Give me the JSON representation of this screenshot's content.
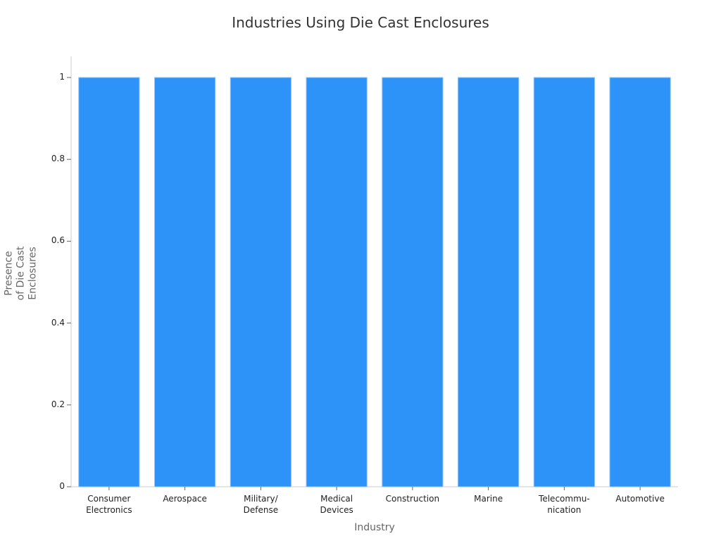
{
  "chart_data": {
    "type": "bar",
    "title": "Industries Using Die Cast Enclosures",
    "xlabel": "Industry",
    "ylabel": "Presence\nof Die Cast\nEnclosures",
    "categories": [
      "Consumer\nElectronics",
      "Aerospace",
      "Military/\nDefense",
      "Medical\nDevices",
      "Construction",
      "Marine",
      "Telecommu-\nnication",
      "Automotive"
    ],
    "values": [
      1,
      1,
      1,
      1,
      1,
      1,
      1,
      1
    ],
    "ylim": [
      0,
      1.05
    ],
    "yticks": [
      "0",
      "0.2",
      "0.4",
      "0.6",
      "0.8",
      "1"
    ],
    "grid": false,
    "bar_color": "#2e93f9"
  }
}
